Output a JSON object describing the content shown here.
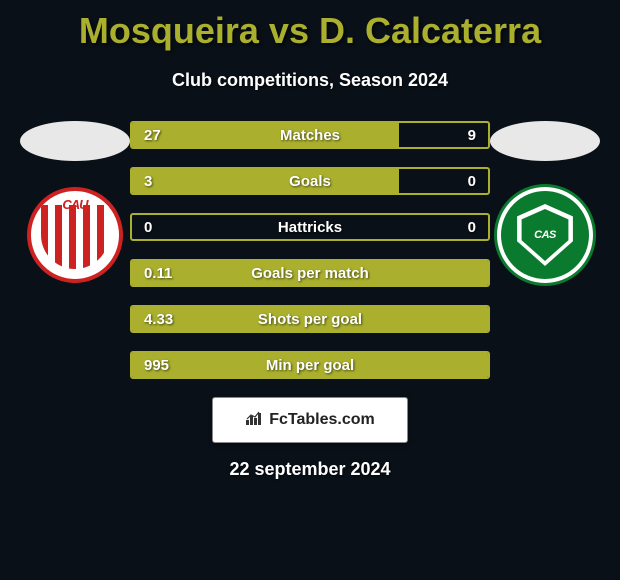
{
  "title": "Mosqueira vs D. Calcaterra",
  "subtitle": "Club competitions, Season 2024",
  "teams": {
    "left": {
      "badge_text": "CAU",
      "badge_primary": "#cc2222",
      "badge_bg": "#ffffff"
    },
    "right": {
      "badge_text": "CAS",
      "badge_primary": "#0a7a2e",
      "badge_bg": "#ffffff"
    }
  },
  "bars": [
    {
      "label": "Matches",
      "left": "27",
      "right": "9",
      "fill_pct": 75
    },
    {
      "label": "Goals",
      "left": "3",
      "right": "0",
      "fill_pct": 75
    },
    {
      "label": "Hattricks",
      "left": "0",
      "right": "0",
      "fill_pct": 0
    },
    {
      "label": "Goals per match",
      "left": "0.11",
      "right": "",
      "fill_pct": 100
    },
    {
      "label": "Shots per goal",
      "left": "4.33",
      "right": "",
      "fill_pct": 100
    },
    {
      "label": "Min per goal",
      "left": "995",
      "right": "",
      "fill_pct": 100
    }
  ],
  "footer": {
    "site": "FcTables.com"
  },
  "date": "22 september 2024",
  "colors": {
    "accent": "#aab02d",
    "background": "#0a1018",
    "text": "#ffffff"
  }
}
